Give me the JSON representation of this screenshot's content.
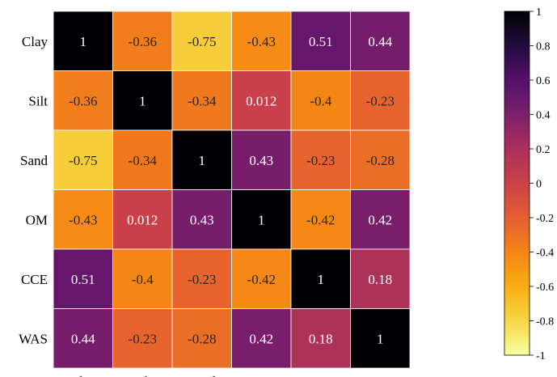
{
  "chart_data": {
    "type": "heatmap",
    "title": "",
    "xlabel": "",
    "ylabel": "",
    "x_categories": [
      "Clay",
      "Silt",
      "Sand",
      "OM",
      "CCE",
      "WAS"
    ],
    "y_categories": [
      "Clay",
      "Silt",
      "Sand",
      "OM",
      "CCE",
      "WAS"
    ],
    "values": [
      [
        1,
        -0.36,
        -0.75,
        -0.43,
        0.51,
        0.44
      ],
      [
        -0.36,
        1,
        -0.34,
        0.012,
        -0.4,
        -0.23
      ],
      [
        -0.75,
        -0.34,
        1,
        0.43,
        -0.23,
        -0.28
      ],
      [
        -0.43,
        0.012,
        0.43,
        1,
        -0.42,
        0.42
      ],
      [
        0.51,
        -0.4,
        -0.23,
        -0.42,
        1,
        0.18
      ],
      [
        0.44,
        -0.23,
        -0.28,
        0.42,
        0.18,
        1
      ]
    ],
    "cell_labels": [
      [
        "1",
        "-0.36",
        "-0.75",
        "-0.43",
        "0.51",
        "0.44"
      ],
      [
        "-0.36",
        "1",
        "-0.34",
        "0.012",
        "-0.4",
        "-0.23"
      ],
      [
        "-0.75",
        "-0.34",
        "1",
        "0.43",
        "-0.23",
        "-0.28"
      ],
      [
        "-0.43",
        "0.012",
        "0.43",
        "1",
        "-0.42",
        "0.42"
      ],
      [
        "0.51",
        "-0.4",
        "-0.23",
        "-0.42",
        "1",
        "0.18"
      ],
      [
        "0.44",
        "-0.23",
        "-0.28",
        "0.42",
        "0.18",
        "1"
      ]
    ],
    "colormap": "inferno_r",
    "colorbar": {
      "range": [
        -1,
        1
      ],
      "ticks": [
        1,
        0.8,
        0.6,
        0.4,
        0.2,
        0,
        -0.2,
        -0.4,
        -0.6,
        -0.8,
        -1
      ],
      "tick_labels": [
        "1",
        "0.8",
        "0.6",
        "0.4",
        "0.2",
        "0",
        "-0.2",
        "-0.4",
        "-0.6",
        "-0.8",
        "-1"
      ],
      "position": "right"
    },
    "grid": false,
    "legend": "none"
  }
}
